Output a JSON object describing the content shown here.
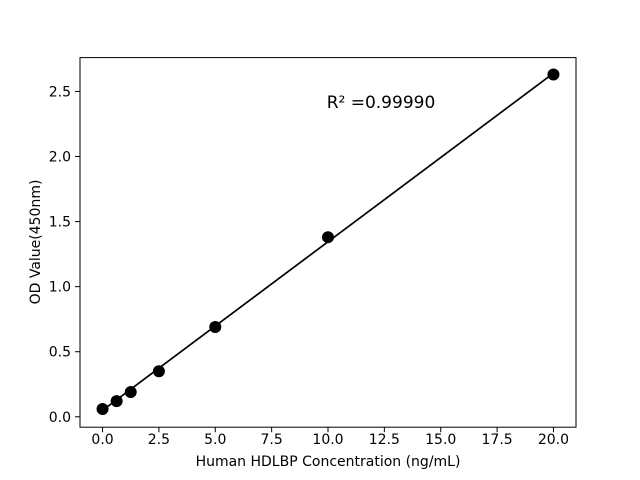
{
  "window": {
    "background": "#ffffff"
  },
  "chart_data": {
    "type": "scatter",
    "title": "",
    "xlabel": "Human HDLBP Concentration (ng/mL)",
    "ylabel": "OD Value(450nm)",
    "x": [
      0,
      0.625,
      1.25,
      2.5,
      5,
      10,
      20
    ],
    "y": [
      0.06,
      0.12,
      0.19,
      0.35,
      0.69,
      1.38,
      2.63
    ],
    "trendline": {
      "x1": 0,
      "y1": 0.05,
      "x2": 20,
      "y2": 2.64
    },
    "annotation": {
      "text": "R² =0.99990",
      "x": 12.35,
      "y": 2.42
    },
    "xlim": [
      -1,
      21
    ],
    "ylim": [
      -0.08,
      2.76
    ],
    "xticks": [
      0,
      2.5,
      5,
      7.5,
      10,
      12.5,
      15,
      17.5,
      20
    ],
    "xtick_labels": [
      "0.0",
      "2.5",
      "5.0",
      "7.5",
      "10.0",
      "12.5",
      "15.0",
      "17.5",
      "20.0"
    ],
    "yticks": [
      0,
      0.5,
      1.0,
      1.5,
      2.0,
      2.5
    ],
    "ytick_labels": [
      "0.0",
      "0.5",
      "1.0",
      "1.5",
      "2.0",
      "2.5"
    ],
    "grid": false,
    "legend": null,
    "colors": {
      "marker": "#000000",
      "line": "#000000",
      "axis": "#000000",
      "text": "#000000"
    }
  }
}
